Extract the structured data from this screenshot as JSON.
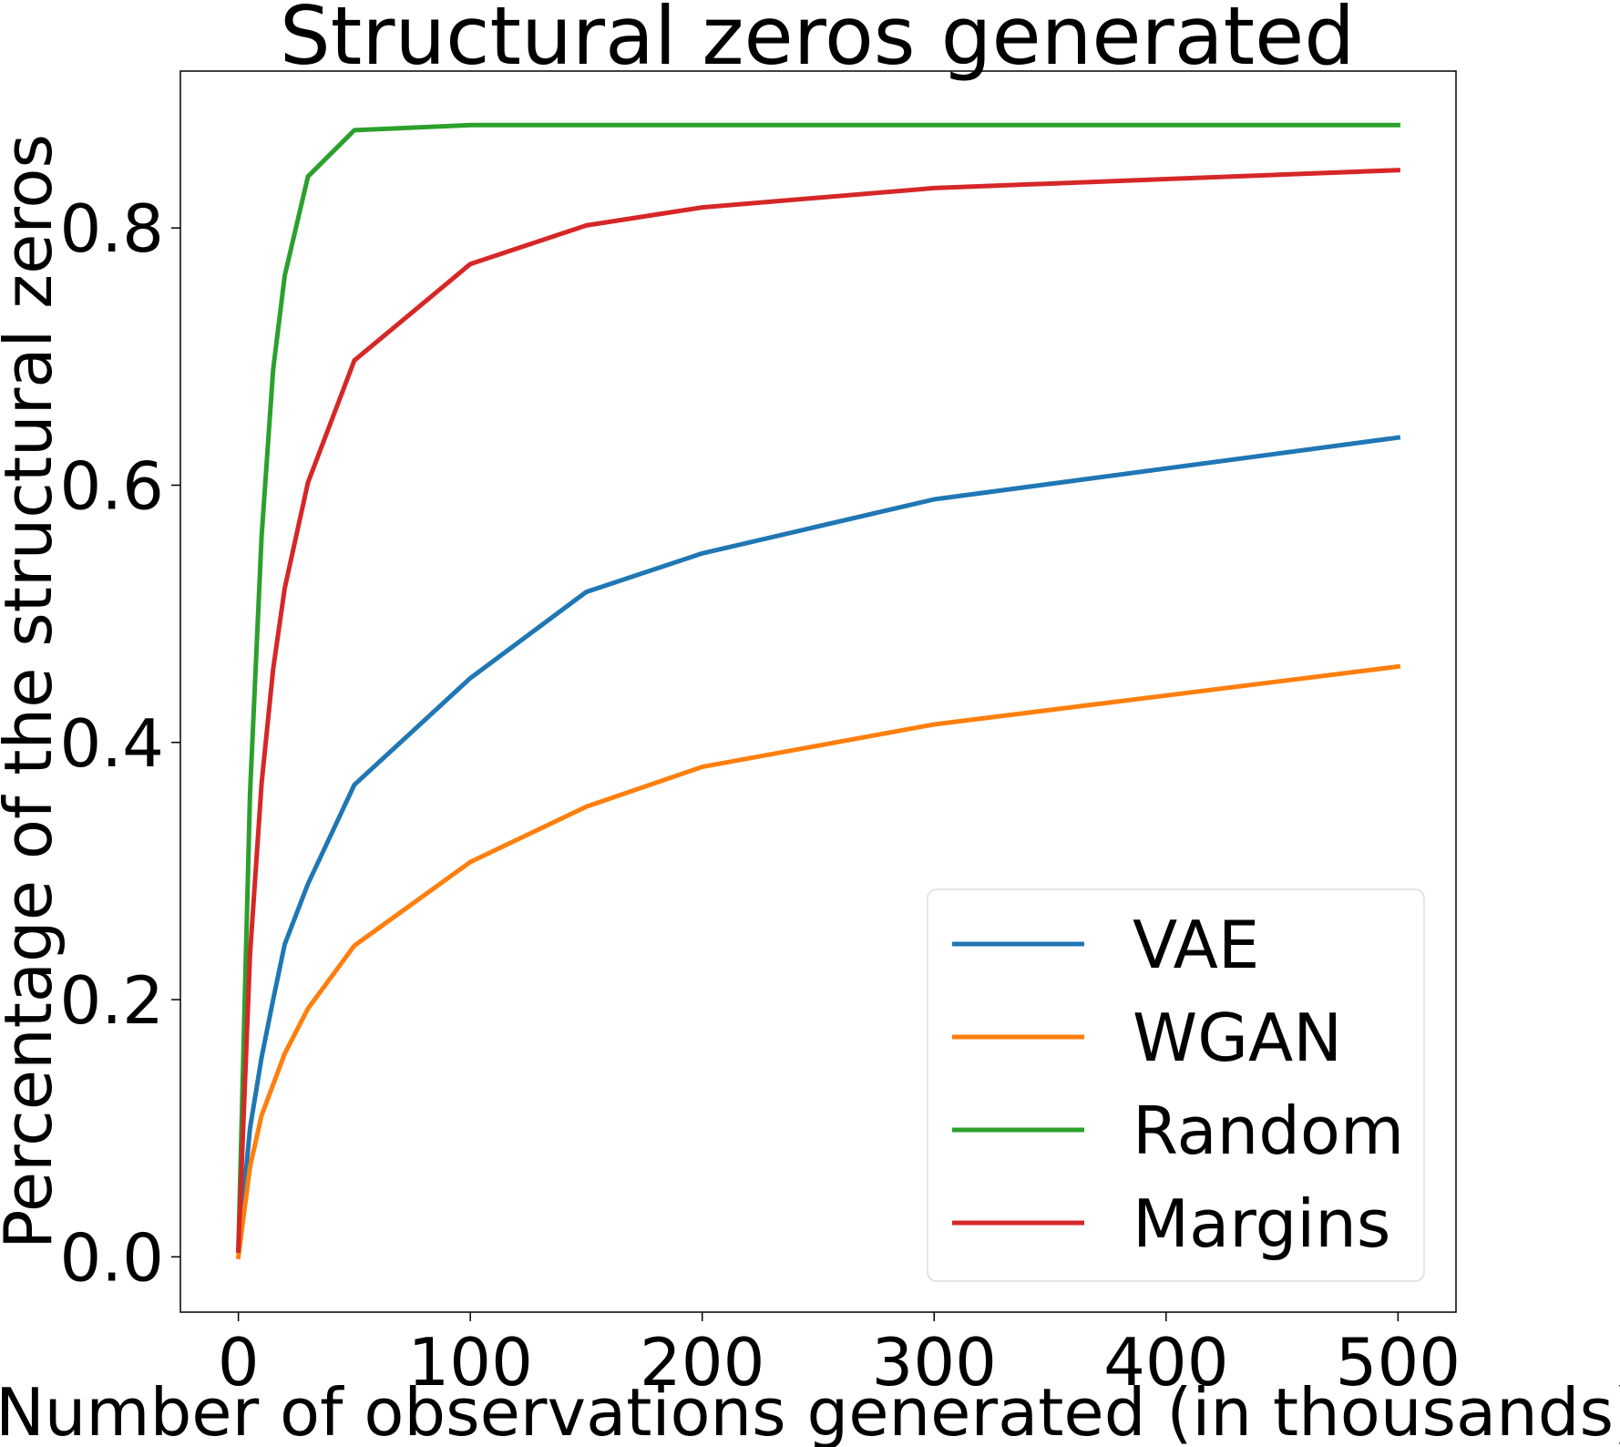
{
  "chart_data": {
    "type": "line",
    "title": "Structural zeros generated",
    "xlabel": "Number of observations generated (in thousands)",
    "ylabel": "Percentage of the structural zeros",
    "xlim": [
      -25,
      525
    ],
    "ylim": [
      -0.043,
      0.922
    ],
    "xticks": [
      0,
      100,
      200,
      300,
      400,
      500
    ],
    "yticks": [
      0.0,
      0.2,
      0.4,
      0.6,
      0.8
    ],
    "xtick_labels": [
      "0",
      "100",
      "200",
      "300",
      "400",
      "500"
    ],
    "ytick_labels": [
      "0.0",
      "0.2",
      "0.4",
      "0.6",
      "0.8"
    ],
    "grid": false,
    "legend_position": "lower-right",
    "series": [
      {
        "name": "VAE",
        "color": "#1f77b4",
        "x": [
          0,
          5,
          10,
          15,
          20,
          30,
          50,
          100,
          150,
          200,
          300,
          500
        ],
        "y": [
          0.005,
          0.1,
          0.155,
          0.2,
          0.243,
          0.29,
          0.367,
          0.45,
          0.517,
          0.547,
          0.589,
          0.637
        ]
      },
      {
        "name": "WGAN",
        "color": "#ff7f0e",
        "x": [
          0,
          5,
          10,
          20,
          30,
          50,
          100,
          150,
          200,
          300,
          500
        ],
        "y": [
          0.0,
          0.07,
          0.11,
          0.158,
          0.193,
          0.242,
          0.307,
          0.35,
          0.381,
          0.414,
          0.459
        ]
      },
      {
        "name": "Random",
        "color": "#2ca02c",
        "x": [
          0,
          5,
          10,
          15,
          20,
          30,
          50,
          100,
          500
        ],
        "y": [
          0.005,
          0.36,
          0.56,
          0.69,
          0.763,
          0.84,
          0.876,
          0.88,
          0.88
        ]
      },
      {
        "name": "Margins",
        "color": "#d62728",
        "x": [
          0,
          5,
          10,
          15,
          20,
          30,
          50,
          100,
          150,
          200,
          300,
          500
        ],
        "y": [
          0.005,
          0.235,
          0.368,
          0.457,
          0.52,
          0.602,
          0.697,
          0.772,
          0.802,
          0.816,
          0.831,
          0.845
        ]
      }
    ]
  }
}
